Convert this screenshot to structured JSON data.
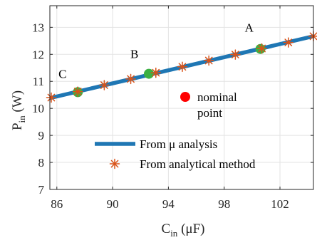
{
  "chart_data": {
    "type": "line",
    "xlabel": {
      "main": "C",
      "sub": "in",
      "unit": " (μF)"
    },
    "ylabel": {
      "main": "P",
      "sub": "in",
      "unit": " (W)"
    },
    "xlim": [
      85.5,
      104.4
    ],
    "ylim": [
      7,
      13.8
    ],
    "xticks": [
      86,
      90,
      94,
      98,
      102
    ],
    "yticks": [
      7,
      8,
      9,
      10,
      11,
      12,
      13
    ],
    "grid": true,
    "colors": {
      "line": "#1f77b4",
      "stars": "#d95319",
      "points": "#3cb043",
      "nominal": "#ff0000"
    },
    "series": [
      {
        "name": "From μ analysis",
        "kind": "line",
        "x": [
          85.5,
          104.4
        ],
        "y": [
          10.38,
          12.67
        ]
      },
      {
        "name": "From analytical method",
        "kind": "star",
        "x": [
          85.6,
          87.5,
          89.4,
          91.3,
          93.1,
          95.0,
          96.9,
          98.8,
          100.7,
          102.6,
          104.4
        ],
        "y": [
          10.4,
          10.62,
          10.86,
          11.09,
          11.32,
          11.54,
          11.77,
          11.99,
          12.22,
          12.44,
          12.67
        ]
      }
    ],
    "points": [
      {
        "label": "A",
        "x": 100.6,
        "y": 12.2
      },
      {
        "label": "B",
        "x": 92.6,
        "y": 11.28
      },
      {
        "label": "C",
        "x": 87.5,
        "y": 10.6
      }
    ],
    "nominal_point": {
      "x": 94.9,
      "y": 10.85,
      "label_line1": "nominal",
      "label_line2": "point"
    },
    "legend_position": "bottom-center"
  }
}
